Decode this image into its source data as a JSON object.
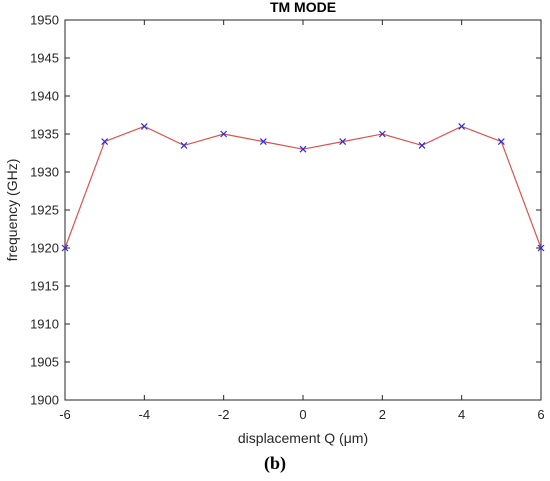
{
  "caption": "(b)",
  "chart_data": {
    "type": "line",
    "title": "TM MODE",
    "xlabel": "displacement Q (μm)",
    "ylabel": "frequency (GHz)",
    "xlim": [
      -6,
      6
    ],
    "ylim": [
      1900,
      1950
    ],
    "xticks": [
      -6,
      -4,
      -2,
      0,
      2,
      4,
      6
    ],
    "yticks": [
      1900,
      1905,
      1910,
      1915,
      1920,
      1925,
      1930,
      1935,
      1940,
      1945,
      1950
    ],
    "grid": false,
    "series": [
      {
        "marker": "x",
        "line_color": "#d9534f",
        "marker_color": "#2b2bd9",
        "x": [
          -6,
          -5,
          -4,
          -3,
          -2,
          -1,
          0,
          1,
          2,
          3,
          4,
          5,
          6
        ],
        "y": [
          1920,
          1934,
          1936,
          1933.5,
          1935,
          1934,
          1933,
          1934,
          1935,
          1933.5,
          1936,
          1934,
          1920
        ]
      }
    ]
  }
}
